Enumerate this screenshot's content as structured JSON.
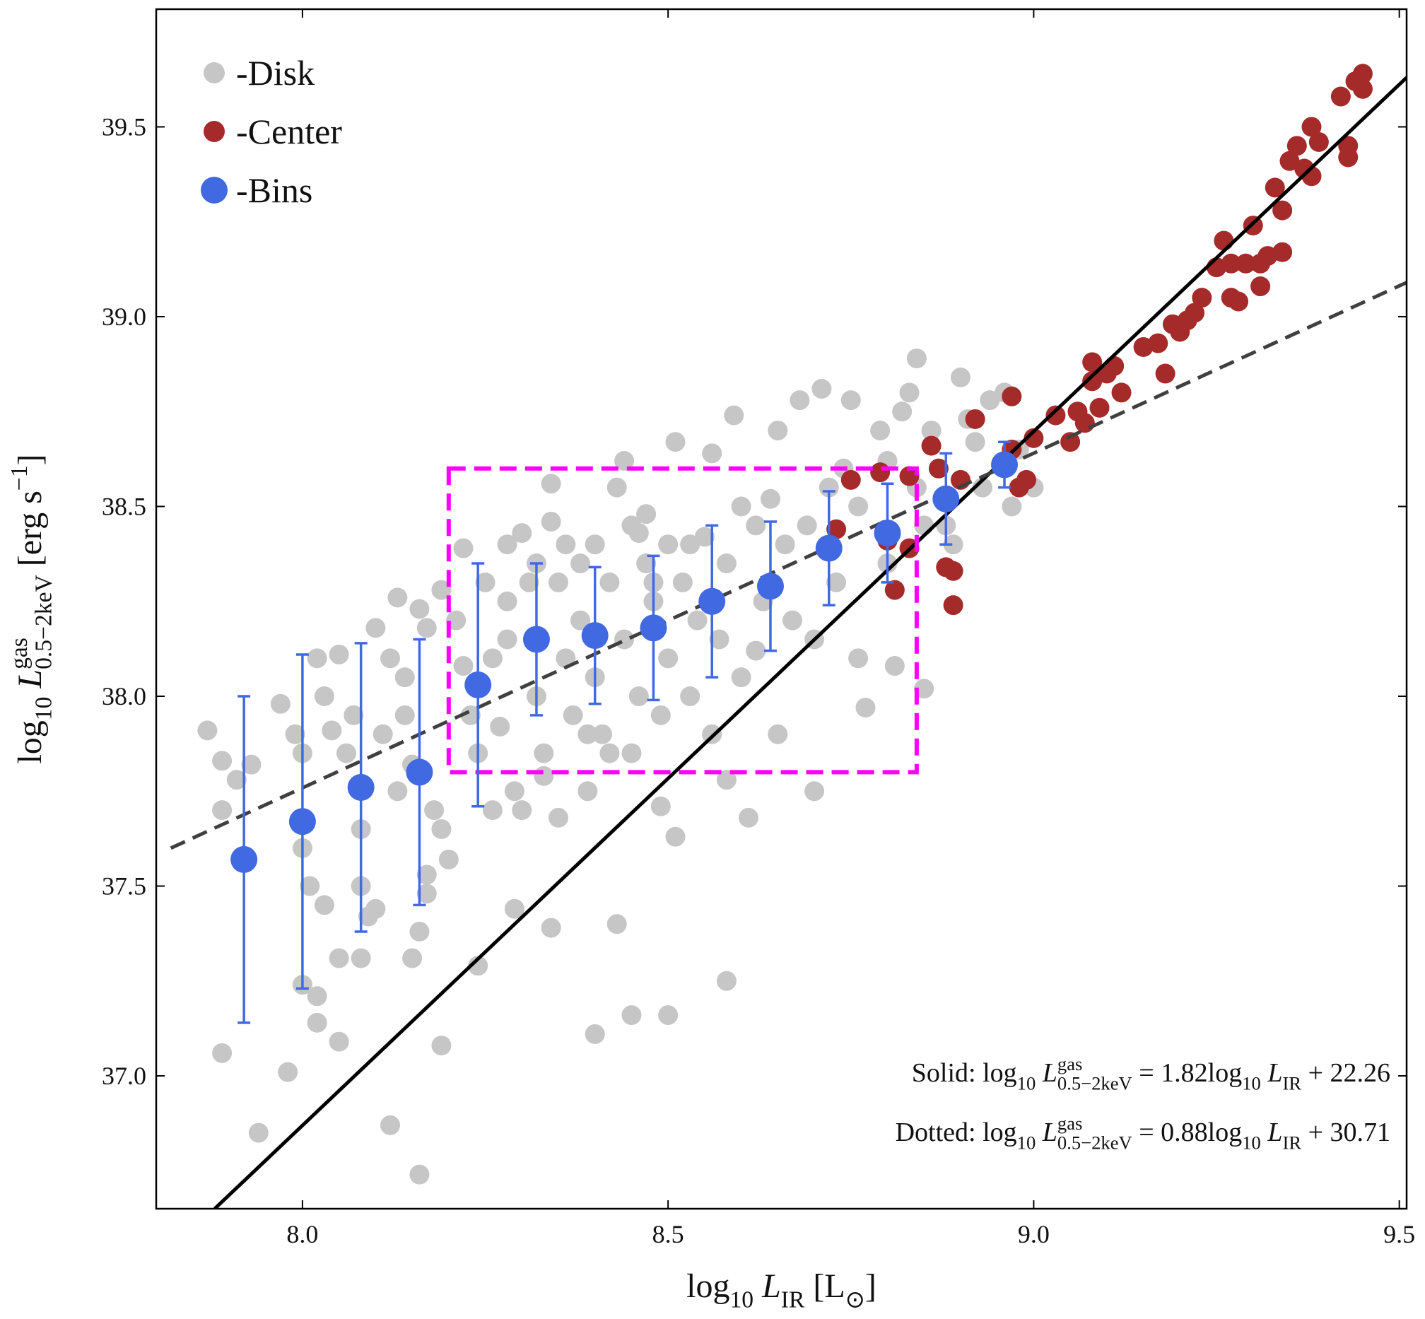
{
  "chart_data": {
    "type": "scatter",
    "xlabel": {
      "parts": [
        {
          "text": "log"
        },
        {
          "text": "10",
          "style": "sub"
        },
        {
          "text": " "
        },
        {
          "text": "L",
          "style": "it"
        },
        {
          "text": "IR",
          "style": "sub"
        },
        {
          "text": " [L"
        },
        {
          "text": "⊙",
          "style": "sub"
        },
        {
          "text": "]"
        }
      ]
    },
    "ylabel": {
      "parts": [
        {
          "text": "log"
        },
        {
          "text": "10",
          "style": "sub"
        },
        {
          "text": " "
        },
        {
          "text": "L",
          "style": "it"
        },
        {
          "text": "gas",
          "style": "sup"
        },
        {
          "text": "0.5−2keV",
          "style": "sub2"
        },
        {
          "text": " [erg s"
        },
        {
          "text": "−1",
          "style": "sup"
        },
        {
          "text": "]"
        }
      ]
    },
    "xlim": [
      7.8,
      9.51
    ],
    "ylim": [
      36.65,
      39.81
    ],
    "xticks": [
      {
        "value": 8,
        "label": "8.0"
      },
      8.5,
      {
        "value": 9,
        "label": "9.0"
      },
      9.5
    ],
    "yticks": [
      {
        "value": 37,
        "label": "37.0"
      },
      37.5,
      {
        "value": 38,
        "label": "38.0"
      },
      38.5,
      {
        "value": 39,
        "label": "39.0"
      },
      39.5
    ],
    "legend": "upper left",
    "series": [
      {
        "name": "-Disk",
        "color": "#c6c6c6",
        "x": [
          7.87,
          7.89,
          7.91,
          7.89,
          7.93,
          7.97,
          7.99,
          8.0,
          8.02,
          8.03,
          8.05,
          8.04,
          8.06,
          8.07,
          8.08,
          8.08,
          8.09,
          8.1,
          8.08,
          8.05,
          8.03,
          8.01,
          8.0,
          8.0,
          8.02,
          8.02,
          8.05,
          7.98,
          7.89,
          7.94,
          8.12,
          8.16,
          8.19,
          8.15,
          8.16,
          8.17,
          8.17,
          8.1,
          8.13,
          8.12,
          8.14,
          8.16,
          8.17,
          8.14,
          8.15,
          8.13,
          8.11,
          8.18,
          8.19,
          8.2,
          8.19,
          8.22,
          8.21,
          8.22,
          8.23,
          8.24,
          8.25,
          8.26,
          8.27,
          8.26,
          8.28,
          8.28,
          8.29,
          8.3,
          8.3,
          8.31,
          8.32,
          8.33,
          8.33,
          8.34,
          8.34,
          8.35,
          8.35,
          8.36,
          8.37,
          8.38,
          8.38,
          8.39,
          8.4,
          8.4,
          8.41,
          8.42,
          8.43,
          8.44,
          8.44,
          8.45,
          8.45,
          8.46,
          8.47,
          8.47,
          8.48,
          8.49,
          8.49,
          8.5,
          8.5,
          8.51,
          8.51,
          8.52,
          8.53,
          8.54,
          8.55,
          8.56,
          8.56,
          8.57,
          8.58,
          8.58,
          8.59,
          8.6,
          8.6,
          8.61,
          8.62,
          8.62,
          8.63,
          8.64,
          8.65,
          8.65,
          8.66,
          8.67,
          8.68,
          8.69,
          8.7,
          8.7,
          8.71,
          8.72,
          8.73,
          8.74,
          8.75,
          8.76,
          8.76,
          8.77,
          8.79,
          8.8,
          8.8,
          8.81,
          8.82,
          8.83,
          8.84,
          8.84,
          8.85,
          8.85,
          8.86,
          8.87,
          8.88,
          8.89,
          8.9,
          8.91,
          8.92,
          8.93,
          8.94,
          8.96,
          8.97,
          8.98,
          9.0,
          8.34,
          8.29,
          8.24,
          8.4,
          8.45,
          8.5,
          8.43,
          8.58,
          8.39,
          8.42,
          8.48,
          8.53,
          8.46,
          8.36,
          8.32,
          8.28
        ],
        "values": [
          37.91,
          37.83,
          37.78,
          37.7,
          37.82,
          37.98,
          37.9,
          37.85,
          38.1,
          38.0,
          38.11,
          37.91,
          37.85,
          37.95,
          37.65,
          37.5,
          37.42,
          37.44,
          37.31,
          37.31,
          37.45,
          37.5,
          37.6,
          37.24,
          37.21,
          37.14,
          37.09,
          37.01,
          37.06,
          36.85,
          36.87,
          36.74,
          37.08,
          37.31,
          37.38,
          37.53,
          37.48,
          38.18,
          38.26,
          38.1,
          38.05,
          38.23,
          38.18,
          37.95,
          37.82,
          37.75,
          37.9,
          37.7,
          37.65,
          37.57,
          38.28,
          38.39,
          38.2,
          38.08,
          37.95,
          37.85,
          38.3,
          38.1,
          37.92,
          37.7,
          38.4,
          38.15,
          37.75,
          38.43,
          37.7,
          38.3,
          38.0,
          37.85,
          37.79,
          38.56,
          38.46,
          38.3,
          37.68,
          38.1,
          37.95,
          38.35,
          38.2,
          37.75,
          38.4,
          38.05,
          37.9,
          38.3,
          38.55,
          38.62,
          38.15,
          38.45,
          37.85,
          38.0,
          38.35,
          38.48,
          38.25,
          37.95,
          37.71,
          38.4,
          38.1,
          38.67,
          37.63,
          38.3,
          38.0,
          38.2,
          38.42,
          38.64,
          37.9,
          38.15,
          38.35,
          37.78,
          38.74,
          38.5,
          38.05,
          37.68,
          38.45,
          38.12,
          38.25,
          38.52,
          38.7,
          37.9,
          38.4,
          38.2,
          38.78,
          38.45,
          38.15,
          37.75,
          38.81,
          38.55,
          38.3,
          38.6,
          38.78,
          38.5,
          38.1,
          37.97,
          38.7,
          38.62,
          38.35,
          38.08,
          38.75,
          38.8,
          38.89,
          38.55,
          38.45,
          38.02,
          38.7,
          38.6,
          38.45,
          38.4,
          38.84,
          38.73,
          38.67,
          38.55,
          38.78,
          38.8,
          38.5,
          38.65,
          38.55,
          37.39,
          37.44,
          37.29,
          37.11,
          37.16,
          37.16,
          37.4,
          37.25,
          37.9,
          37.85,
          38.3,
          38.4,
          38.43,
          38.4,
          38.35,
          38.25
        ]
      },
      {
        "name": "-Center",
        "color": "#a52a2a",
        "x": [
          8.73,
          8.75,
          8.79,
          8.8,
          8.81,
          8.83,
          8.83,
          8.86,
          8.87,
          8.88,
          8.89,
          8.89,
          8.9,
          8.92,
          8.97,
          8.97,
          8.98,
          8.99,
          9.0,
          9.03,
          9.05,
          9.06,
          9.07,
          9.08,
          9.08,
          9.09,
          9.1,
          9.11,
          9.12,
          9.15,
          9.17,
          9.18,
          9.19,
          9.2,
          9.21,
          9.22,
          9.23,
          9.25,
          9.26,
          9.27,
          9.28,
          9.29,
          9.3,
          9.31,
          9.31,
          9.32,
          9.33,
          9.34,
          9.35,
          9.36,
          9.37,
          9.38,
          9.38,
          9.39,
          9.42,
          9.43,
          9.43,
          9.44,
          9.45,
          9.45,
          9.34,
          9.27
        ],
        "values": [
          38.44,
          38.57,
          38.59,
          38.41,
          38.28,
          38.58,
          38.39,
          38.66,
          38.6,
          38.34,
          38.33,
          38.24,
          38.57,
          38.73,
          38.65,
          38.79,
          38.55,
          38.57,
          38.68,
          38.74,
          38.67,
          38.75,
          38.72,
          38.83,
          38.88,
          38.76,
          38.85,
          38.87,
          38.8,
          38.92,
          38.93,
          38.85,
          38.98,
          38.96,
          38.99,
          39.01,
          39.05,
          39.13,
          39.2,
          39.05,
          39.04,
          39.14,
          39.24,
          39.08,
          39.14,
          39.16,
          39.34,
          39.28,
          39.41,
          39.45,
          39.39,
          39.5,
          39.37,
          39.46,
          39.58,
          39.42,
          39.45,
          39.62,
          39.64,
          39.6,
          39.17,
          39.14
        ]
      },
      {
        "name": "-Bins",
        "color": "#4169e1",
        "x": [
          7.92,
          8.0,
          8.08,
          8.16,
          8.24,
          8.32,
          8.4,
          8.48,
          8.56,
          8.64,
          8.72,
          8.8,
          8.88,
          8.96
        ],
        "values": [
          37.57,
          37.67,
          37.76,
          37.8,
          38.03,
          38.15,
          38.16,
          38.18,
          38.25,
          38.29,
          38.39,
          38.43,
          38.52,
          38.61
        ],
        "errors": [
          0.43,
          0.44,
          0.38,
          0.35,
          0.32,
          0.2,
          0.18,
          0.19,
          0.2,
          0.17,
          0.15,
          0.13,
          0.12,
          0.06
        ]
      }
    ],
    "lines": [
      {
        "color": "#000000",
        "dash": false,
        "x": [
          7.88,
          9.51
        ],
        "values": [
          36.65,
          39.63
        ]
      },
      {
        "color": "#404040",
        "dash": true,
        "x": [
          7.82,
          9.51
        ],
        "values": [
          37.6,
          39.09
        ]
      }
    ],
    "box": {
      "color": "#ff00ff",
      "x": [
        8.2,
        8.84
      ],
      "y": [
        37.8,
        38.6
      ]
    },
    "annotations": [
      {
        "parts": [
          {
            "text": "Solid: log"
          },
          {
            "text": "10",
            "style": "sub"
          },
          {
            "text": " "
          },
          {
            "text": "L",
            "style": "it"
          },
          {
            "text": "gas",
            "style": "sup"
          },
          {
            "text": "0.5−2keV",
            "style": "sub2"
          },
          {
            "text": " = 1.82log"
          },
          {
            "text": "10",
            "style": "sub"
          },
          {
            "text": " "
          },
          {
            "text": "L",
            "style": "it"
          },
          {
            "text": "IR",
            "style": "sub"
          },
          {
            "text": " + 22.26"
          }
        ]
      },
      {
        "parts": [
          {
            "text": "Dotted: log"
          },
          {
            "text": "10",
            "style": "sub"
          },
          {
            "text": " "
          },
          {
            "text": "L",
            "style": "it"
          },
          {
            "text": "gas",
            "style": "sup"
          },
          {
            "text": "0.5−2keV",
            "style": "sub2"
          },
          {
            "text": " = 0.88log"
          },
          {
            "text": "10",
            "style": "sub"
          },
          {
            "text": " "
          },
          {
            "text": "L",
            "style": "it"
          },
          {
            "text": "IR",
            "style": "sub"
          },
          {
            "text": " + 30.71"
          }
        ]
      }
    ]
  }
}
